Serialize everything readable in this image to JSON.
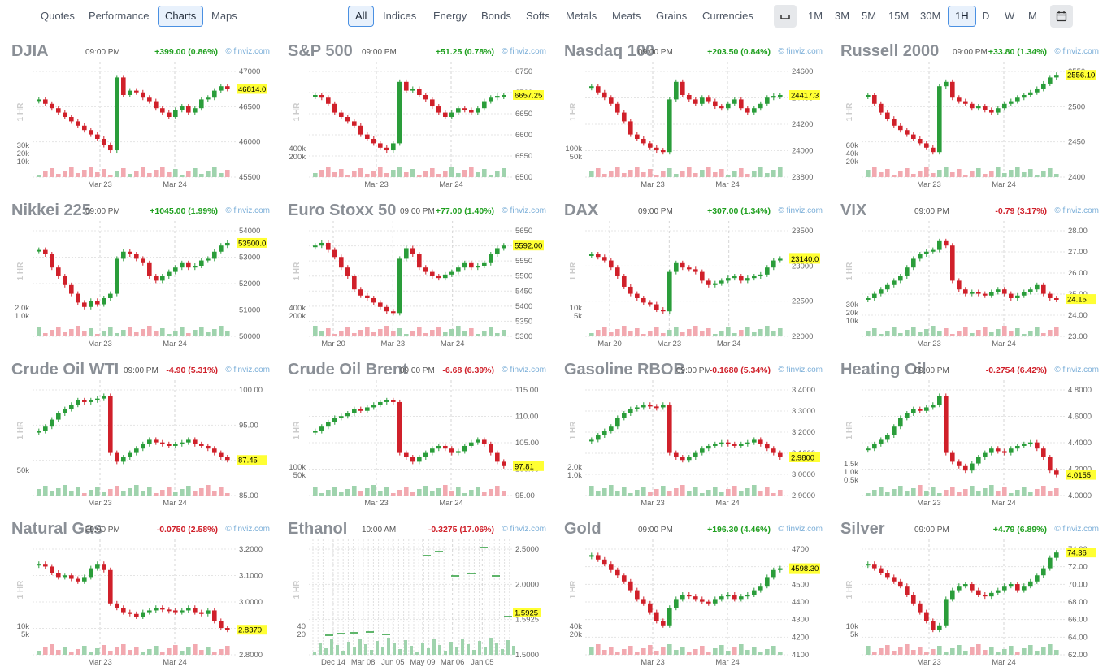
{
  "nav": {
    "left": [
      "Quotes",
      "Performance",
      "Charts",
      "Maps"
    ],
    "left_active": "Charts",
    "groups": [
      "All",
      "Indices",
      "Energy",
      "Bonds",
      "Softs",
      "Metals",
      "Meats",
      "Grains",
      "Currencies"
    ],
    "groups_active": "All",
    "timeframes": [
      "1M",
      "3M",
      "5M",
      "15M",
      "30M",
      "1H",
      "D",
      "W",
      "M"
    ],
    "timeframe_active": "1H",
    "icons": [
      "space-icon",
      "calendar-icon"
    ]
  },
  "colors": {
    "up": "#2a9d3a",
    "down": "#d0202a",
    "vol_up": "#9fd3ad",
    "vol_down": "#f2a9b0",
    "price_tag": "#ffff33",
    "source": "#7aaed8"
  },
  "source_label": "© finviz.com",
  "side_label": "1 HR",
  "panels": [
    {
      "name": "DJIA",
      "time": "09:00 PM",
      "change": "+399.00 (0.86%)",
      "dir": "up",
      "y_ticks": [
        "47000",
        "46500",
        "46000",
        "45500"
      ],
      "vol_ticks": [
        "30k",
        "20k",
        "10k"
      ],
      "x_ticks": [
        "Mar 23",
        "Mar 24"
      ],
      "last": "46814.0",
      "path": [
        0.7,
        0.65,
        0.6,
        0.55,
        0.5,
        0.45,
        0.4,
        0.35,
        0.3,
        0.25,
        0.18,
        0.12,
        0.95,
        0.75,
        0.8,
        0.78,
        0.72,
        0.68,
        0.6,
        0.55,
        0.5,
        0.58,
        0.62,
        0.55,
        0.6,
        0.7,
        0.72,
        0.8,
        0.85,
        0.82
      ]
    },
    {
      "name": "S&P 500",
      "time": "09:00 PM",
      "change": "+51.25 (0.78%)",
      "dir": "up",
      "y_ticks": [
        "6750",
        "6700",
        "6650",
        "6600",
        "6550",
        "6500"
      ],
      "vol_ticks": [
        "400k",
        "200k"
      ],
      "x_ticks": [
        "Mar 23",
        "Mar 24"
      ],
      "last": "6657.25",
      "path": [
        0.75,
        0.72,
        0.65,
        0.55,
        0.5,
        0.45,
        0.4,
        0.3,
        0.25,
        0.2,
        0.15,
        0.12,
        0.2,
        0.9,
        0.8,
        0.82,
        0.75,
        0.7,
        0.62,
        0.55,
        0.5,
        0.55,
        0.6,
        0.58,
        0.55,
        0.6,
        0.68,
        0.72,
        0.74,
        0.75
      ]
    },
    {
      "name": "Nasdaq 100",
      "time": "09:00 PM",
      "change": "+203.50 (0.84%)",
      "dir": "up",
      "y_ticks": [
        "24600",
        "24400",
        "24200",
        "24000",
        "23800"
      ],
      "vol_ticks": [
        "100k",
        "50k"
      ],
      "x_ticks": [
        "Mar 23",
        "Mar 24"
      ],
      "last": "24417.3",
      "path": [
        0.85,
        0.78,
        0.72,
        0.65,
        0.55,
        0.45,
        0.3,
        0.25,
        0.2,
        0.15,
        0.12,
        0.1,
        0.7,
        0.9,
        0.75,
        0.7,
        0.65,
        0.72,
        0.68,
        0.62,
        0.6,
        0.65,
        0.7,
        0.6,
        0.55,
        0.6,
        0.65,
        0.72,
        0.74,
        0.75
      ]
    },
    {
      "name": "Russell 2000",
      "time": "09:00 PM",
      "change": "+33.80 (1.34%)",
      "dir": "up",
      "y_ticks": [
        "2550",
        "2500",
        "2450",
        "2400"
      ],
      "vol_ticks": [
        "60k",
        "40k",
        "20k"
      ],
      "x_ticks": [
        "Mar 23",
        "Mar 24"
      ],
      "last": "2556.10",
      "path": [
        0.75,
        0.65,
        0.55,
        0.48,
        0.4,
        0.35,
        0.3,
        0.25,
        0.2,
        0.15,
        0.1,
        0.85,
        0.9,
        0.72,
        0.68,
        0.65,
        0.6,
        0.62,
        0.58,
        0.55,
        0.6,
        0.65,
        0.68,
        0.72,
        0.75,
        0.78,
        0.82,
        0.88,
        0.95,
        0.98
      ]
    },
    {
      "name": "Nikkei 225",
      "time": "09:00 PM",
      "change": "+1045.00 (1.99%)",
      "dir": "up",
      "y_ticks": [
        "54000",
        "53000",
        "52000",
        "51000",
        "50000"
      ],
      "vol_ticks": [
        "2.0k",
        "1.0k"
      ],
      "x_ticks": [
        "Mar 23",
        "Mar 24"
      ],
      "last": "53500.0",
      "path": [
        0.8,
        0.75,
        0.6,
        0.5,
        0.4,
        0.3,
        0.2,
        0.15,
        0.22,
        0.18,
        0.25,
        0.3,
        0.7,
        0.78,
        0.75,
        0.7,
        0.65,
        0.5,
        0.45,
        0.5,
        0.55,
        0.6,
        0.65,
        0.6,
        0.62,
        0.68,
        0.7,
        0.78,
        0.85,
        0.88
      ]
    },
    {
      "name": "Euro Stoxx 50",
      "time": "09:00 PM",
      "change": "+77.00 (1.40%)",
      "dir": "up",
      "y_ticks": [
        "5650",
        "5600",
        "5550",
        "5500",
        "5450",
        "5400",
        "5350",
        "5300"
      ],
      "vol_ticks": [
        "400k",
        "200k"
      ],
      "x_ticks": [
        "Mar 20",
        "Mar 23",
        "Mar 24"
      ],
      "last": "5592.00",
      "path": [
        0.85,
        0.88,
        0.8,
        0.72,
        0.6,
        0.5,
        0.35,
        0.28,
        0.25,
        0.2,
        0.15,
        0.1,
        0.08,
        0.7,
        0.82,
        0.75,
        0.6,
        0.55,
        0.5,
        0.48,
        0.52,
        0.55,
        0.6,
        0.65,
        0.6,
        0.62,
        0.65,
        0.75,
        0.82,
        0.85
      ]
    },
    {
      "name": "DAX",
      "time": "09:00 PM",
      "change": "+307.00 (1.34%)",
      "dir": "up",
      "y_ticks": [
        "23500",
        "23000",
        "22500",
        "22000"
      ],
      "vol_ticks": [
        "10k",
        "5k"
      ],
      "x_ticks": [
        "Mar 20",
        "Mar 23",
        "Mar 24"
      ],
      "last": "23140.0",
      "path": [
        0.75,
        0.72,
        0.68,
        0.6,
        0.5,
        0.38,
        0.3,
        0.25,
        0.2,
        0.18,
        0.12,
        0.1,
        0.55,
        0.65,
        0.6,
        0.58,
        0.55,
        0.45,
        0.4,
        0.42,
        0.45,
        0.48,
        0.5,
        0.45,
        0.48,
        0.5,
        0.52,
        0.6,
        0.68,
        0.7
      ]
    },
    {
      "name": "VIX",
      "time": "09:00 PM",
      "change": "-0.79 (3.17%)",
      "dir": "down",
      "y_ticks": [
        "28.00",
        "27.00",
        "26.00",
        "25.00",
        "24.00",
        "23.00"
      ],
      "vol_ticks": [
        "30k",
        "20k",
        "10k"
      ],
      "x_ticks": [
        "Mar 23",
        "Mar 24"
      ],
      "last": "24.15",
      "path": [
        0.25,
        0.3,
        0.35,
        0.4,
        0.45,
        0.5,
        0.6,
        0.7,
        0.75,
        0.78,
        0.8,
        0.9,
        0.85,
        0.45,
        0.35,
        0.3,
        0.32,
        0.3,
        0.28,
        0.32,
        0.35,
        0.3,
        0.25,
        0.28,
        0.32,
        0.35,
        0.4,
        0.3,
        0.25,
        0.24
      ]
    },
    {
      "name": "Crude Oil WTI",
      "time": "09:00 PM",
      "change": "-4.90 (5.31%)",
      "dir": "down",
      "y_ticks": [
        "100.00",
        "95.00",
        "90.00",
        "85.00"
      ],
      "vol_ticks": [
        "50k"
      ],
      "x_ticks": [
        "Mar 23",
        "Mar 24"
      ],
      "last": "87.45",
      "path": [
        0.55,
        0.6,
        0.68,
        0.75,
        0.8,
        0.85,
        0.9,
        0.88,
        0.9,
        0.92,
        0.95,
        0.3,
        0.2,
        0.25,
        0.3,
        0.35,
        0.4,
        0.45,
        0.42,
        0.4,
        0.38,
        0.4,
        0.42,
        0.45,
        0.4,
        0.38,
        0.35,
        0.3,
        0.25,
        0.22
      ]
    },
    {
      "name": "Crude Oil Brent",
      "time": "09:00 PM",
      "change": "-6.68 (6.39%)",
      "dir": "down",
      "y_ticks": [
        "115.00",
        "110.00",
        "105.00",
        "100.00",
        "95.00"
      ],
      "vol_ticks": [
        "100k",
        "50k"
      ],
      "x_ticks": [
        "Mar 23",
        "Mar 24"
      ],
      "last": "97.81",
      "path": [
        0.55,
        0.6,
        0.65,
        0.7,
        0.72,
        0.75,
        0.8,
        0.78,
        0.82,
        0.85,
        0.88,
        0.9,
        0.88,
        0.3,
        0.25,
        0.2,
        0.25,
        0.3,
        0.35,
        0.38,
        0.35,
        0.3,
        0.32,
        0.38,
        0.42,
        0.45,
        0.4,
        0.3,
        0.2,
        0.15
      ]
    },
    {
      "name": "Gasoline RBOB",
      "time": "09:00 PM",
      "change": "-0.1680 (5.34%)",
      "dir": "down",
      "y_ticks": [
        "3.4000",
        "3.3000",
        "3.2000",
        "3.1000",
        "3.0000",
        "2.9000"
      ],
      "vol_ticks": [
        "2.0k",
        "1.0k"
      ],
      "x_ticks": [
        "Mar 23",
        "Mar 24"
      ],
      "last": "2.9800",
      "path": [
        0.45,
        0.5,
        0.55,
        0.6,
        0.7,
        0.75,
        0.8,
        0.82,
        0.85,
        0.83,
        0.82,
        0.85,
        0.3,
        0.25,
        0.22,
        0.25,
        0.3,
        0.35,
        0.38,
        0.4,
        0.42,
        0.4,
        0.38,
        0.4,
        0.42,
        0.45,
        0.4,
        0.35,
        0.3,
        0.25
      ]
    },
    {
      "name": "Heating Oil",
      "time": "09:00 PM",
      "change": "-0.2754 (6.42%)",
      "dir": "down",
      "y_ticks": [
        "4.8000",
        "4.6000",
        "4.4000",
        "4.2000",
        "4.0000"
      ],
      "vol_ticks": [
        "1.5k",
        "1.0k",
        "0.5k"
      ],
      "x_ticks": [
        "Mar 23",
        "Mar 24"
      ],
      "last": "4.0155",
      "path": [
        0.35,
        0.4,
        0.45,
        0.5,
        0.6,
        0.7,
        0.75,
        0.8,
        0.78,
        0.82,
        0.85,
        0.95,
        0.3,
        0.2,
        0.15,
        0.1,
        0.18,
        0.25,
        0.3,
        0.35,
        0.32,
        0.3,
        0.35,
        0.38,
        0.4,
        0.42,
        0.35,
        0.25,
        0.1,
        0.05
      ]
    },
    {
      "name": "Natural Gas",
      "time": "09:00 PM",
      "change": "-0.0750 (2.58%)",
      "dir": "down",
      "y_ticks": [
        "3.2000",
        "3.1000",
        "3.0000",
        "2.9000",
        "2.8000"
      ],
      "vol_ticks": [
        "10k",
        "5k"
      ],
      "x_ticks": [
        "Mar 23",
        "Mar 24"
      ],
      "last": "2.8370",
      "path": [
        0.85,
        0.82,
        0.75,
        0.7,
        0.72,
        0.68,
        0.65,
        0.7,
        0.8,
        0.85,
        0.78,
        0.4,
        0.35,
        0.3,
        0.28,
        0.25,
        0.3,
        0.32,
        0.35,
        0.33,
        0.32,
        0.3,
        0.32,
        0.35,
        0.3,
        0.28,
        0.32,
        0.2,
        0.12,
        0.1
      ]
    },
    {
      "name": "Ethanol",
      "time": "10:00 AM",
      "change": "-0.3275 (17.06%)",
      "dir": "down",
      "y_ticks": [
        "2.5000",
        "2.0000",
        "1.5925",
        "1.5000"
      ],
      "vol_ticks": [
        "40",
        "20"
      ],
      "x_ticks": [
        "Dec 14",
        "Mar 08",
        "Jun 05",
        "May 09",
        "Mar 06",
        "Jan 05"
      ],
      "last": "1.5925",
      "path": []
    },
    {
      "name": "Gold",
      "time": "09:00 PM",
      "change": "+196.30 (4.46%)",
      "dir": "up",
      "y_ticks": [
        "4700",
        "4600",
        "4500",
        "4400",
        "4300",
        "4200",
        "4100"
      ],
      "vol_ticks": [
        "40k",
        "20k"
      ],
      "x_ticks": [
        "Mar 23",
        "Mar 24"
      ],
      "last": "4598.30",
      "path": [
        0.95,
        0.9,
        0.85,
        0.78,
        0.72,
        0.65,
        0.55,
        0.45,
        0.4,
        0.3,
        0.2,
        0.15,
        0.35,
        0.45,
        0.5,
        0.48,
        0.45,
        0.42,
        0.4,
        0.45,
        0.48,
        0.5,
        0.45,
        0.48,
        0.5,
        0.55,
        0.6,
        0.7,
        0.78,
        0.8
      ]
    },
    {
      "name": "Silver",
      "time": "09:00 PM",
      "change": "+4.79 (6.89%)",
      "dir": "up",
      "y_ticks": [
        "74.00",
        "72.00",
        "70.00",
        "68.00",
        "66.00",
        "64.00",
        "62.00"
      ],
      "vol_ticks": [
        "10k",
        "5k"
      ],
      "x_ticks": [
        "Mar 23",
        "Mar 24"
      ],
      "last": "74.36",
      "path": [
        0.85,
        0.8,
        0.75,
        0.7,
        0.65,
        0.6,
        0.5,
        0.4,
        0.3,
        0.2,
        0.1,
        0.15,
        0.45,
        0.55,
        0.6,
        0.62,
        0.55,
        0.5,
        0.48,
        0.52,
        0.55,
        0.6,
        0.62,
        0.55,
        0.6,
        0.65,
        0.72,
        0.8,
        0.92,
        0.98
      ]
    }
  ]
}
